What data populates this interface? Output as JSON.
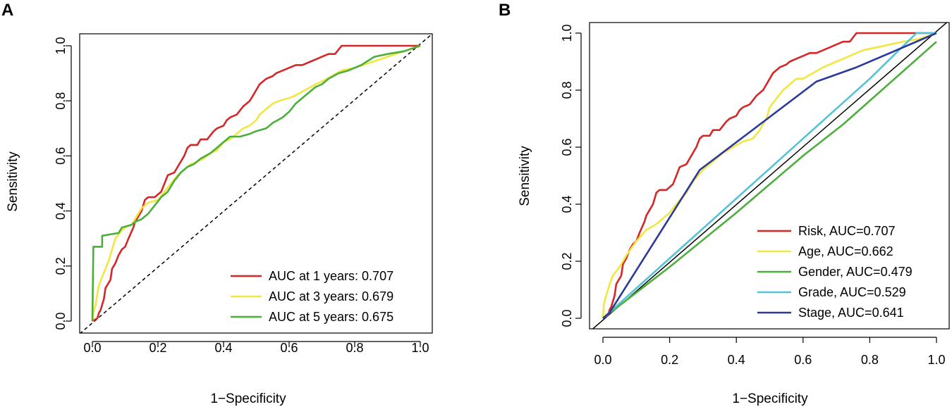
{
  "chart_data": [
    {
      "panel": "A",
      "type": "line",
      "xlabel": "1−Specificity",
      "ylabel": "Sensitivity",
      "xlim": [
        0,
        1
      ],
      "ylim": [
        0,
        1
      ],
      "xticks": [
        "0.0",
        "0.2",
        "0.4",
        "0.6",
        "0.8",
        "1.0"
      ],
      "yticks": [
        "0.0",
        "0.2",
        "0.4",
        "0.6",
        "0.8",
        "1.0"
      ],
      "legend_position": "bottom-right",
      "diagonal": true,
      "series": [
        {
          "name": "AUC at 1 years: 0.707",
          "color": "#d62728",
          "x": [
            0,
            0.015,
            0.02,
            0.025,
            0.035,
            0.04,
            0.055,
            0.06,
            0.07,
            0.08,
            0.09,
            0.1,
            0.11,
            0.125,
            0.13,
            0.15,
            0.16,
            0.17,
            0.19,
            0.21,
            0.22,
            0.23,
            0.25,
            0.26,
            0.28,
            0.29,
            0.3,
            0.32,
            0.33,
            0.35,
            0.37,
            0.38,
            0.4,
            0.41,
            0.42,
            0.44,
            0.46,
            0.48,
            0.49,
            0.5,
            0.51,
            0.52,
            0.53,
            0.55,
            0.56,
            0.58,
            0.6,
            0.62,
            0.64,
            0.66,
            0.68,
            0.7,
            0.72,
            0.74,
            0.76,
            0.78,
            0.85,
            0.9,
            1.0
          ],
          "y": [
            0,
            0.01,
            0.03,
            0.04,
            0.08,
            0.12,
            0.15,
            0.19,
            0.21,
            0.24,
            0.26,
            0.27,
            0.3,
            0.34,
            0.36,
            0.4,
            0.44,
            0.45,
            0.45,
            0.47,
            0.5,
            0.53,
            0.54,
            0.56,
            0.6,
            0.63,
            0.64,
            0.64,
            0.66,
            0.66,
            0.69,
            0.7,
            0.71,
            0.73,
            0.74,
            0.75,
            0.78,
            0.8,
            0.82,
            0.84,
            0.86,
            0.87,
            0.88,
            0.89,
            0.9,
            0.91,
            0.92,
            0.93,
            0.93,
            0.94,
            0.95,
            0.96,
            0.97,
            0.97,
            1.0,
            1.0,
            1.0,
            1.0,
            1.0
          ]
        },
        {
          "name": "AUC at 3 years: 0.679",
          "color": "#f2e640",
          "x": [
            0,
            0.005,
            0.01,
            0.015,
            0.02,
            0.03,
            0.04,
            0.05,
            0.06,
            0.07,
            0.09,
            0.1,
            0.12,
            0.13,
            0.15,
            0.17,
            0.2,
            0.22,
            0.24,
            0.26,
            0.28,
            0.3,
            0.32,
            0.34,
            0.36,
            0.38,
            0.4,
            0.42,
            0.44,
            0.46,
            0.48,
            0.5,
            0.51,
            0.53,
            0.55,
            0.57,
            0.6,
            0.62,
            0.65,
            0.68,
            0.7,
            0.73,
            0.76,
            0.8,
            0.85,
            0.9,
            0.95,
            1.0
          ],
          "y": [
            0,
            0.04,
            0.06,
            0.1,
            0.13,
            0.16,
            0.19,
            0.22,
            0.26,
            0.3,
            0.33,
            0.34,
            0.35,
            0.37,
            0.41,
            0.43,
            0.44,
            0.47,
            0.5,
            0.53,
            0.55,
            0.57,
            0.58,
            0.59,
            0.61,
            0.62,
            0.65,
            0.66,
            0.68,
            0.7,
            0.71,
            0.73,
            0.75,
            0.77,
            0.79,
            0.8,
            0.81,
            0.82,
            0.84,
            0.86,
            0.87,
            0.89,
            0.91,
            0.92,
            0.94,
            0.96,
            0.98,
            1.0
          ]
        },
        {
          "name": "AUC at 5 years: 0.675",
          "color": "#4cae3c",
          "x": [
            0,
            0.003,
            0.03,
            0.03,
            0.08,
            0.09,
            0.12,
            0.13,
            0.15,
            0.17,
            0.19,
            0.21,
            0.23,
            0.25,
            0.27,
            0.29,
            0.31,
            0.33,
            0.36,
            0.38,
            0.4,
            0.42,
            0.45,
            0.48,
            0.5,
            0.53,
            0.55,
            0.58,
            0.6,
            0.62,
            0.65,
            0.68,
            0.7,
            0.72,
            0.75,
            0.78,
            0.82,
            0.86,
            0.9,
            0.95,
            1.0
          ],
          "y": [
            0,
            0.27,
            0.27,
            0.31,
            0.32,
            0.34,
            0.35,
            0.36,
            0.37,
            0.39,
            0.42,
            0.45,
            0.47,
            0.51,
            0.54,
            0.56,
            0.57,
            0.59,
            0.61,
            0.63,
            0.65,
            0.67,
            0.67,
            0.68,
            0.69,
            0.7,
            0.72,
            0.74,
            0.76,
            0.79,
            0.82,
            0.85,
            0.86,
            0.88,
            0.9,
            0.91,
            0.93,
            0.96,
            0.97,
            0.98,
            1.0
          ]
        }
      ]
    },
    {
      "panel": "B",
      "type": "line",
      "xlabel": "1−Specificity",
      "ylabel": "Sensitivity",
      "xlim": [
        0,
        1
      ],
      "ylim": [
        0,
        1
      ],
      "xticks": [
        "0.0",
        "0.2",
        "0.4",
        "0.6",
        "0.8",
        "1.0"
      ],
      "yticks": [
        "0.0",
        "0.2",
        "0.4",
        "0.6",
        "0.8",
        "1.0"
      ],
      "legend_position": "bottom-right",
      "diagonal": true,
      "series": [
        {
          "name": "Risk, AUC=0.707",
          "color": "#d62728",
          "x": [
            0,
            0.015,
            0.02,
            0.025,
            0.035,
            0.04,
            0.055,
            0.06,
            0.07,
            0.08,
            0.09,
            0.1,
            0.11,
            0.125,
            0.13,
            0.15,
            0.16,
            0.17,
            0.19,
            0.21,
            0.22,
            0.23,
            0.25,
            0.26,
            0.28,
            0.29,
            0.3,
            0.32,
            0.33,
            0.35,
            0.37,
            0.38,
            0.4,
            0.41,
            0.42,
            0.44,
            0.46,
            0.48,
            0.49,
            0.5,
            0.51,
            0.52,
            0.53,
            0.55,
            0.56,
            0.58,
            0.6,
            0.62,
            0.64,
            0.66,
            0.68,
            0.7,
            0.72,
            0.74,
            0.76,
            0.78,
            0.85,
            0.9,
            1.0
          ],
          "y": [
            0,
            0.01,
            0.03,
            0.04,
            0.08,
            0.12,
            0.15,
            0.19,
            0.21,
            0.24,
            0.26,
            0.27,
            0.3,
            0.34,
            0.36,
            0.4,
            0.44,
            0.45,
            0.45,
            0.47,
            0.5,
            0.53,
            0.54,
            0.56,
            0.6,
            0.63,
            0.64,
            0.64,
            0.66,
            0.66,
            0.69,
            0.7,
            0.71,
            0.73,
            0.74,
            0.75,
            0.78,
            0.8,
            0.82,
            0.84,
            0.86,
            0.87,
            0.88,
            0.89,
            0.9,
            0.91,
            0.92,
            0.93,
            0.93,
            0.94,
            0.95,
            0.96,
            0.97,
            0.97,
            1.0,
            1.0,
            1.0,
            1.0,
            1.0
          ]
        },
        {
          "name": "Age, AUC=0.662",
          "color": "#f2e640",
          "x": [
            0,
            0.003,
            0.01,
            0.02,
            0.03,
            0.05,
            0.07,
            0.1,
            0.13,
            0.16,
            0.18,
            0.2,
            0.22,
            0.25,
            0.27,
            0.3,
            0.33,
            0.36,
            0.39,
            0.42,
            0.45,
            0.47,
            0.49,
            0.5,
            0.52,
            0.54,
            0.56,
            0.58,
            0.6,
            0.63,
            0.66,
            0.7,
            0.74,
            0.78,
            0.82,
            0.86,
            0.9,
            0.95,
            1.0
          ],
          "y": [
            0,
            0.05,
            0.08,
            0.12,
            0.15,
            0.18,
            0.22,
            0.27,
            0.31,
            0.33,
            0.35,
            0.37,
            0.4,
            0.44,
            0.48,
            0.52,
            0.55,
            0.58,
            0.6,
            0.62,
            0.63,
            0.66,
            0.7,
            0.74,
            0.77,
            0.8,
            0.82,
            0.84,
            0.84,
            0.86,
            0.88,
            0.9,
            0.92,
            0.94,
            0.95,
            0.96,
            0.97,
            0.98,
            1.0
          ]
        },
        {
          "name": "Gender, AUC=0.479",
          "color": "#4cae3c",
          "x": [
            0,
            0.2,
            0.4,
            0.6,
            0.72,
            1.0
          ],
          "y": [
            0,
            0.18,
            0.37,
            0.57,
            0.68,
            0.97
          ]
        },
        {
          "name": "Grade, AUC=0.529",
          "color": "#55c3d6",
          "x": [
            0,
            0.2,
            0.4,
            0.6,
            0.8,
            0.94,
            1.0
          ],
          "y": [
            0,
            0.21,
            0.42,
            0.63,
            0.84,
            1.0,
            1.0
          ]
        },
        {
          "name": "Stage, AUC=0.641",
          "color": "#2b3a9a",
          "x": [
            0,
            0.02,
            0.29,
            0.64,
            0.76,
            1.0
          ],
          "y": [
            0,
            0.02,
            0.52,
            0.83,
            0.88,
            1.0
          ]
        }
      ]
    }
  ]
}
